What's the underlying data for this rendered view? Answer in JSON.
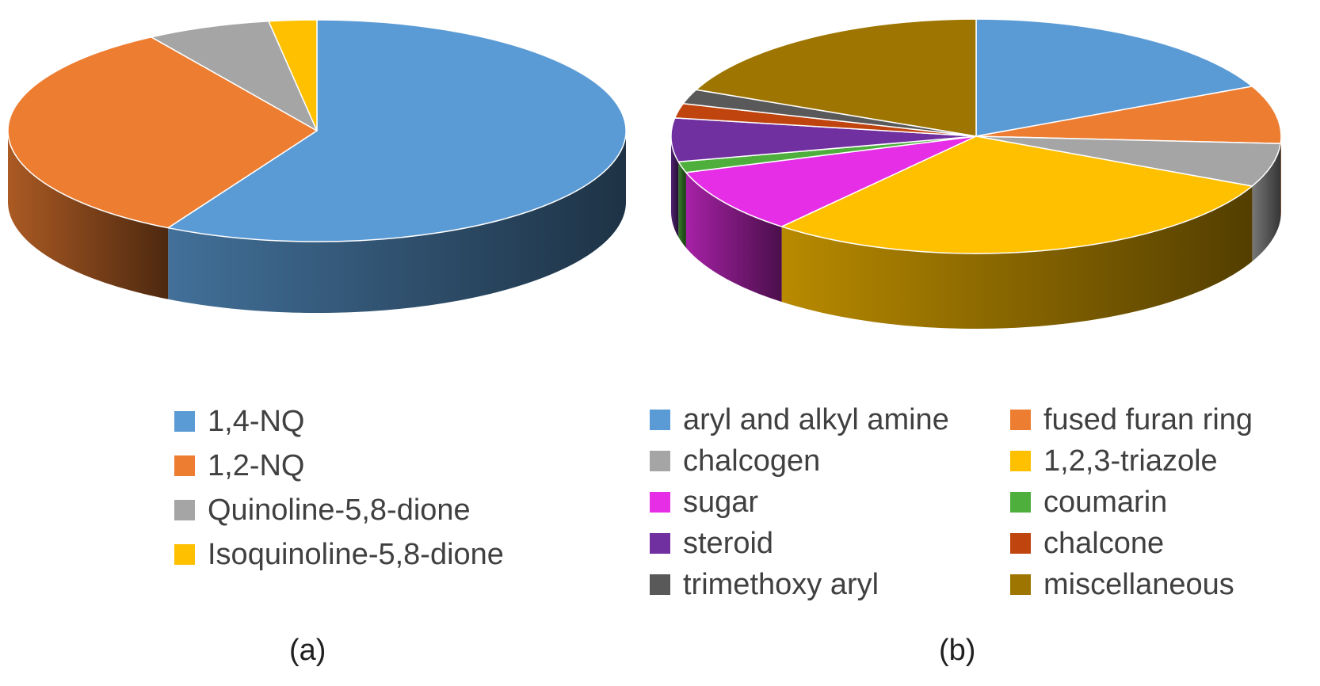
{
  "figure": {
    "panel_a_label": "(a)",
    "panel_b_label": "(b)"
  },
  "chart_data": [
    {
      "type": "pie",
      "title": "",
      "legend_position": "bottom",
      "labels": [
        "1,4-NQ",
        "1,2-NQ",
        "Quinoline-5,8-dione",
        "Isoquinoline-5,8-dione"
      ],
      "values": [
        58,
        33,
        6.5,
        2.5
      ],
      "colors": [
        "#5B9BD5",
        "#ED7D31",
        "#A5A5A5",
        "#FFC000"
      ]
    },
    {
      "type": "pie",
      "title": "",
      "legend_position": "bottom",
      "labels": [
        "aryl and alkyl amine",
        "fused furan ring",
        "chalcogen",
        "1,2,3-triazole",
        "sugar",
        "coumarin",
        "steroid",
        "chalcone",
        "trimethoxy aryl",
        "miscellaneous"
      ],
      "values": [
        18,
        8,
        6,
        29,
        9,
        1.5,
        6,
        2,
        2,
        18.5
      ],
      "colors": [
        "#5B9BD5",
        "#ED7D31",
        "#A5A5A5",
        "#FFC000",
        "#E62EE6",
        "#4EAF3C",
        "#7030A0",
        "#C0440E",
        "#595959",
        "#9E7500"
      ]
    }
  ]
}
